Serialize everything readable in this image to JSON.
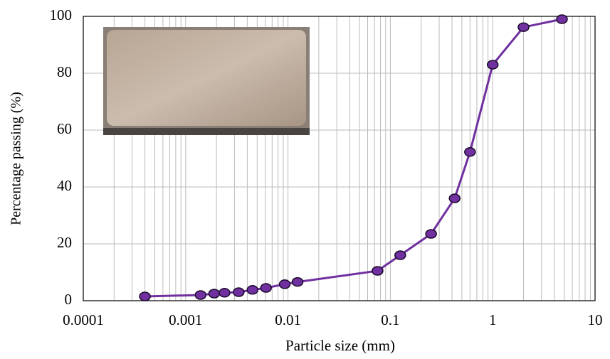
{
  "chart_data": {
    "type": "line",
    "xlabel": "Particle size (mm)",
    "ylabel": "Percentage passing (%)",
    "x_log_scale": true,
    "xlim": [
      0.0001,
      10
    ],
    "xticks": [
      0.0001,
      0.001,
      0.01,
      0.1,
      1,
      10
    ],
    "ylim": [
      0,
      100
    ],
    "yticks": [
      0,
      20,
      40,
      60,
      80,
      100
    ],
    "grid": true,
    "minor_x_grid": true,
    "series": [
      {
        "color": "#7030a0",
        "x": [
          0.0004,
          0.0014,
          0.0019,
          0.0024,
          0.0033,
          0.0045,
          0.0061,
          0.0093,
          0.0124,
          0.075,
          0.125,
          0.25,
          0.425,
          0.6,
          1.0,
          2.0,
          4.75
        ],
        "values": [
          1.5,
          2,
          2.5,
          2.8,
          3,
          3.8,
          4.5,
          5.8,
          6.6,
          10.5,
          16,
          23.5,
          36,
          52.3,
          83,
          96.2,
          99
        ]
      }
    ]
  }
}
